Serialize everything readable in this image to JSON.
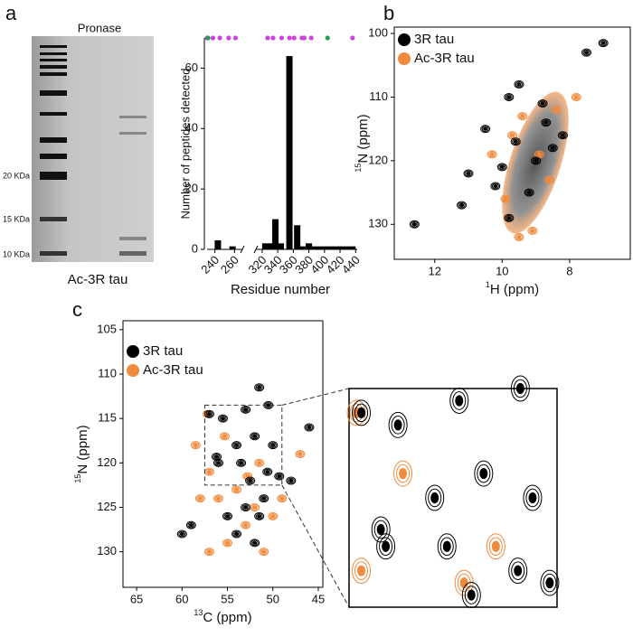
{
  "panel_labels": [
    "a",
    "b",
    "c"
  ],
  "gel": {
    "title": "Pronase",
    "markers": [
      "20 KDa",
      "15 KDa",
      "10 KDa"
    ],
    "caption": "Ac-3R tau"
  },
  "chart_data": [
    {
      "type": "bar",
      "ylabel": "Number of peptides detected",
      "xlabel": "Residue number",
      "xsegments": [
        {
          "xlim": [
            232,
            268
          ],
          "xticks": [
            240,
            260
          ]
        },
        {
          "xlim": [
            312,
            442
          ],
          "xticks": [
            320,
            340,
            360,
            380,
            400,
            420,
            440
          ]
        }
      ],
      "ylim": [
        0,
        70
      ],
      "yticks": [
        0,
        20,
        40,
        60
      ],
      "color": "#000000",
      "x": [
        243,
        258,
        324,
        331,
        337,
        344,
        355,
        365,
        372,
        380,
        388,
        396,
        404,
        412,
        420,
        428,
        436
      ],
      "values": [
        3,
        1,
        2,
        2,
        10,
        2,
        64,
        8,
        1,
        2,
        1,
        1,
        1,
        1,
        1,
        1,
        1
      ],
      "site_markers": [
        {
          "color": "#cc44dd",
          "x": [
            232,
            238,
            245,
            254,
            261,
            327,
            334,
            345,
            355,
            361,
            371,
            374,
            383,
            436
          ]
        },
        {
          "color": "#22a050",
          "x": [
            233,
            404
          ]
        }
      ]
    },
    {
      "type": "nmr",
      "xlabel": {
        "sup": "1",
        "text": "H (ppm)"
      },
      "ylabel": {
        "sup": "15",
        "text": "N (ppm)"
      },
      "xlim": [
        13.2,
        6.2
      ],
      "xticks": [
        12,
        10,
        8
      ],
      "ylim": [
        99,
        135.5
      ],
      "yticks": [
        100,
        110,
        120,
        130
      ],
      "series": [
        {
          "name": "3R tau",
          "color": "#000000",
          "x": [
            12.6,
            11.2,
            11.0,
            10.5,
            9.8,
            9.5,
            8.8,
            8.2,
            7.5,
            8.5,
            9.2,
            9.8,
            10.2,
            7.0,
            9.0,
            8.7,
            9.6,
            10.0
          ],
          "y": [
            130,
            127,
            122,
            115,
            110,
            108,
            111,
            116,
            103,
            118,
            125,
            129,
            124,
            101.5,
            120,
            114,
            117,
            121
          ]
        },
        {
          "name": "Ac-3R tau",
          "color": "#f08a3c",
          "x": [
            9.4,
            8.9,
            9.9,
            8.4,
            10.3,
            9.1,
            8.6,
            9.7,
            7.8,
            9.5
          ],
          "y": [
            113,
            119,
            126,
            112,
            119,
            131,
            123,
            116,
            110,
            132
          ]
        }
      ]
    },
    {
      "type": "nmr",
      "xlabel": {
        "sup": "13",
        "text": "C (ppm)"
      },
      "ylabel": {
        "sup": "15",
        "text": "N (ppm)"
      },
      "xlim": [
        66.5,
        44.5
      ],
      "xticks": [
        65,
        60,
        55,
        50,
        45
      ],
      "ylim": [
        104,
        134
      ],
      "yticks": [
        105,
        110,
        115,
        120,
        125,
        130
      ],
      "zoom_xlim": [
        57.5,
        49
      ],
      "zoom_ylim": [
        113.5,
        122.5
      ],
      "series": [
        {
          "name": "3R tau",
          "color": "#000000",
          "x": [
            51.5,
            50.5,
            46,
            53,
            55.5,
            57,
            52,
            54,
            50,
            56,
            48,
            52.5,
            51,
            53,
            51.5,
            55,
            59,
            54,
            52,
            60,
            56.2,
            53.5,
            50.6,
            49.3
          ],
          "y": [
            111.5,
            113.5,
            116,
            114,
            115,
            114.5,
            117,
            118,
            118,
            120,
            122,
            122,
            124,
            125,
            126,
            126,
            127,
            128,
            129,
            128,
            119.3,
            120,
            121,
            121.5
          ]
        },
        {
          "name": "Ac-3R tau",
          "color": "#f08a3c",
          "x": [
            58.5,
            57,
            56,
            54,
            52,
            50,
            55,
            57,
            51,
            53,
            49,
            58,
            51.5,
            47,
            52.8,
            55.3,
            57.2
          ],
          "y": [
            118,
            121,
            124,
            123,
            125,
            126,
            129,
            130,
            130,
            127,
            124,
            124,
            120,
            119,
            121.5,
            117,
            114.5
          ]
        }
      ]
    }
  ]
}
